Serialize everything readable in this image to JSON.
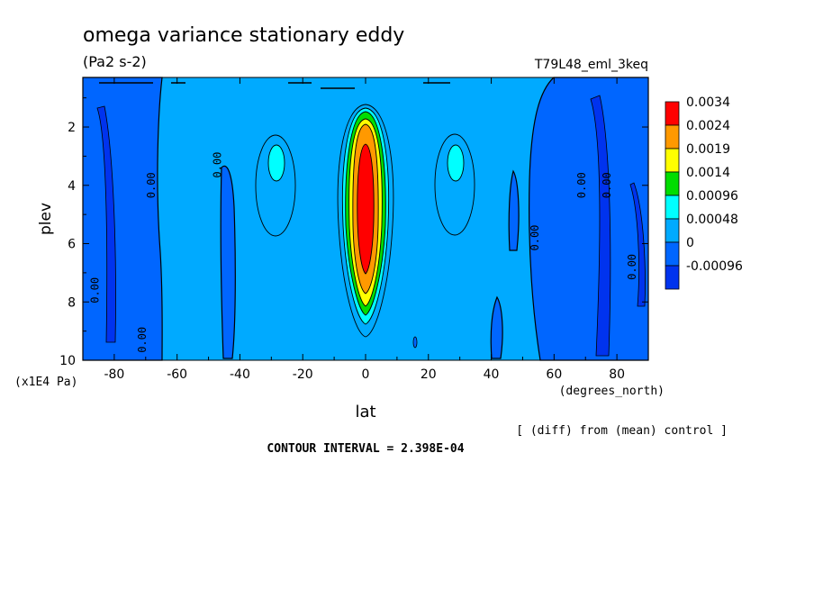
{
  "chart_data": {
    "type": "heatmap",
    "title": "omega variance stationary eddy",
    "units": "(Pa2 s-2)",
    "run_label": "T79L48_eml_3keq",
    "xlabel": "lat",
    "x_units": "(degrees_north)",
    "ylabel": "plev",
    "y_units": "(x1E4 Pa)",
    "xlim": [
      -90,
      90
    ],
    "ylim": [
      0.3,
      10
    ],
    "y_inverted": true,
    "x_ticks": [
      -80,
      -60,
      -40,
      -20,
      0,
      20,
      40,
      60,
      80
    ],
    "x_tick_labels": [
      "-80",
      "-60",
      "-40",
      "-20",
      "0",
      "20",
      "40",
      "60",
      "80"
    ],
    "y_ticks": [
      2,
      4,
      6,
      8,
      10
    ],
    "y_tick_labels": [
      "2",
      "4",
      "6",
      "8",
      "10"
    ],
    "contour_labels": [
      {
        "text": "0.00",
        "lat": -85,
        "plev": 7.6
      },
      {
        "text": "0.00",
        "lat": -70,
        "plev": 9.3
      },
      {
        "text": "0.00",
        "lat": -67,
        "plev": 4.0
      },
      {
        "text": "0.00",
        "lat": -46,
        "plev": 3.3
      },
      {
        "text": "0.00",
        "lat": 55,
        "plev": 5.8
      },
      {
        "text": "0.00",
        "lat": 70,
        "plev": 4.0
      },
      {
        "text": "0.00",
        "lat": 78,
        "plev": 4.0
      },
      {
        "text": "0.00",
        "lat": 86,
        "plev": 6.8
      }
    ],
    "colorbar": {
      "labels": [
        "0.0034",
        "0.0024",
        "0.0019",
        "0.0014",
        "0.00096",
        "0.00048",
        "0",
        "-0.00096"
      ],
      "colors": [
        "#ff0000",
        "#ff9900",
        "#ffff00",
        "#00dd00",
        "#00ffff",
        "#00aaff",
        "#0066ff",
        "#0033ee"
      ]
    },
    "regions": {
      "background_color": "#00aaff",
      "negative_color": "#0066ff",
      "positive_low_color": "#00ffff",
      "columns_negative": [
        {
          "lat_min": -90,
          "lat_max": -68
        },
        {
          "lat_min": -48,
          "lat_max": -42
        },
        {
          "lat_min": 52,
          "lat_max": 90
        }
      ],
      "equatorial_peak": {
        "lat_center": 0,
        "plev_peak": 4.5,
        "max_value": 0.0034
      }
    },
    "annotations": {
      "source_note": "[ (diff) from (mean) control ]",
      "contour_interval": "CONTOUR INTERVAL = 2.398E-04"
    }
  }
}
